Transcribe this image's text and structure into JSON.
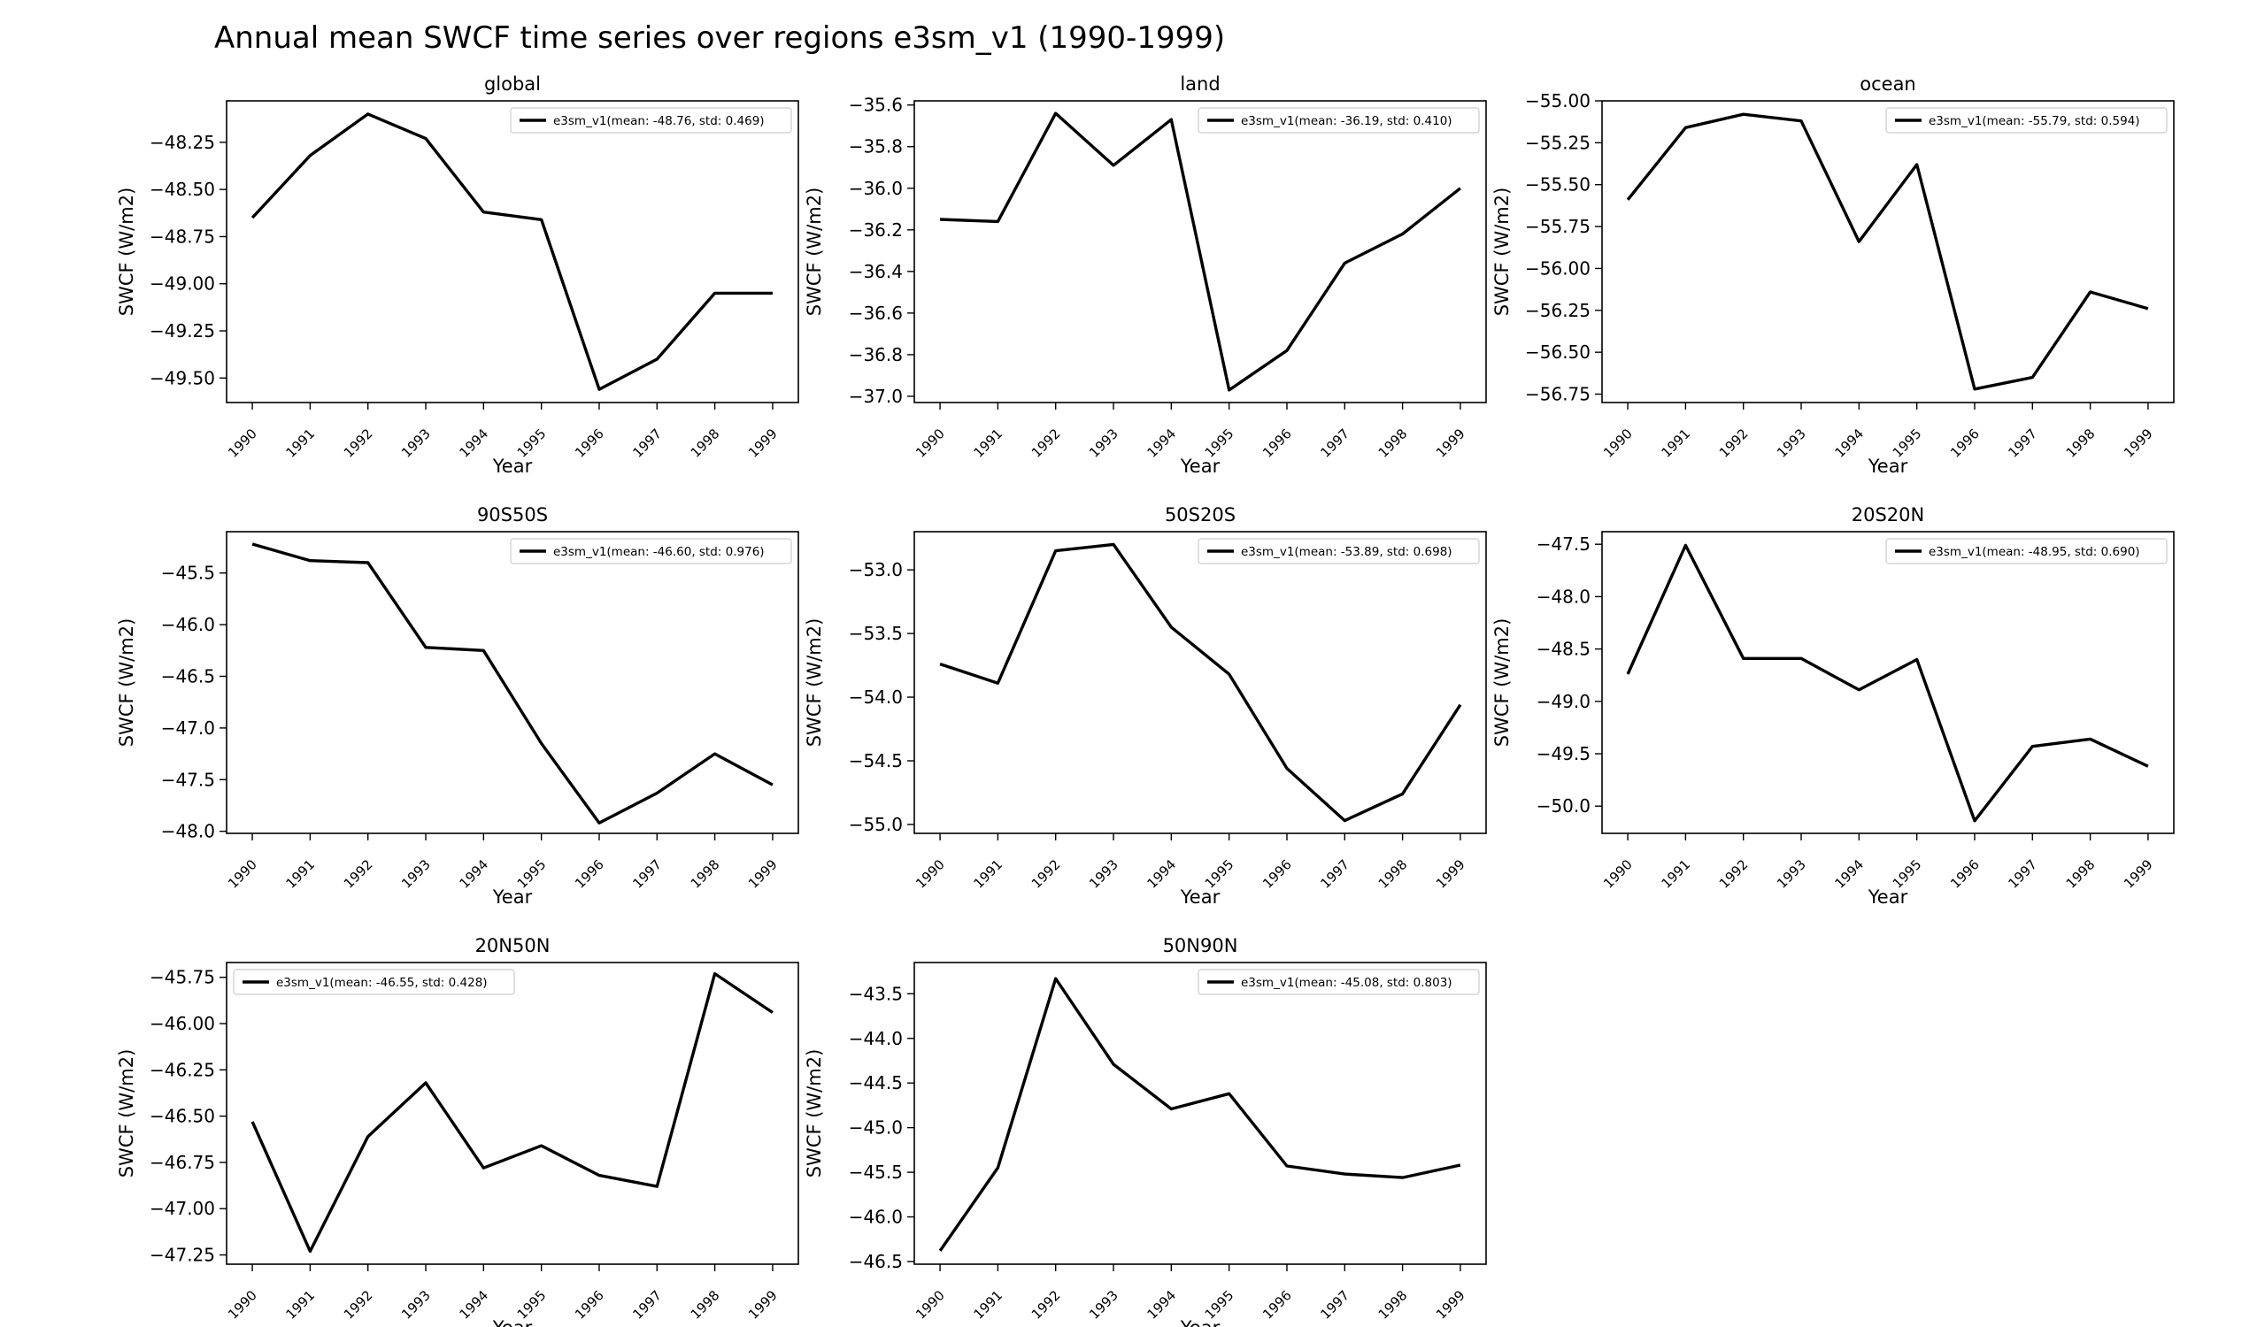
{
  "figure": {
    "title": "Annual mean SWCF time series over regions e3sm_v1 (1990-1999)"
  },
  "chart_data": [
    {
      "type": "line",
      "title": "global",
      "xlabel": "Year",
      "ylabel": "SWCF (W/m2)",
      "x": [
        "1990",
        "1991",
        "1992",
        "1993",
        "1994",
        "1995",
        "1996",
        "1997",
        "1998",
        "1999"
      ],
      "series": [
        {
          "name": "e3sm_v1(mean: -48.76, std: 0.469)",
          "color": "#000000",
          "values": [
            -48.65,
            -48.32,
            -48.1,
            -48.23,
            -48.62,
            -48.66,
            -49.56,
            -49.4,
            -49.05,
            -49.05
          ]
        }
      ],
      "ylim": [
        -49.63,
        -48.03
      ],
      "yticks": [
        -49.5,
        -49.25,
        -49.0,
        -48.75,
        -48.5,
        -48.25
      ],
      "ytick_labels": [
        "−49.50",
        "−49.25",
        "−49.00",
        "−48.75",
        "−48.50",
        "−48.25"
      ],
      "legend": "upper right"
    },
    {
      "type": "line",
      "title": "land",
      "xlabel": "Year",
      "ylabel": "SWCF (W/m2)",
      "x": [
        "1990",
        "1991",
        "1992",
        "1993",
        "1994",
        "1995",
        "1996",
        "1997",
        "1998",
        "1999"
      ],
      "series": [
        {
          "name": "e3sm_v1(mean: -36.19, std: 0.410)",
          "color": "#000000",
          "values": [
            -36.15,
            -36.16,
            -35.64,
            -35.89,
            -35.67,
            -36.97,
            -36.78,
            -36.36,
            -36.22,
            -36.0
          ]
        }
      ],
      "ylim": [
        -37.03,
        -35.58
      ],
      "yticks": [
        -37.0,
        -36.8,
        -36.6,
        -36.4,
        -36.2,
        -36.0,
        -35.8,
        -35.6
      ],
      "ytick_labels": [
        "−37.0",
        "−36.8",
        "−36.6",
        "−36.4",
        "−36.2",
        "−36.0",
        "−35.8",
        "−35.6"
      ],
      "legend": "upper right"
    },
    {
      "type": "line",
      "title": "ocean",
      "xlabel": "Year",
      "ylabel": "SWCF (W/m2)",
      "x": [
        "1990",
        "1991",
        "1992",
        "1993",
        "1994",
        "1995",
        "1996",
        "1997",
        "1998",
        "1999"
      ],
      "series": [
        {
          "name": "e3sm_v1(mean: -55.79, std: 0.594)",
          "color": "#000000",
          "values": [
            -55.59,
            -55.16,
            -55.08,
            -55.12,
            -55.84,
            -55.38,
            -56.72,
            -56.65,
            -56.14,
            -56.24
          ]
        }
      ],
      "ylim": [
        -56.8,
        -55.0
      ],
      "yticks": [
        -56.75,
        -56.5,
        -56.25,
        -56.0,
        -55.75,
        -55.5,
        -55.25,
        -55.0
      ],
      "ytick_labels": [
        "−56.75",
        "−56.50",
        "−56.25",
        "−56.00",
        "−55.75",
        "−55.50",
        "−55.25",
        "−55.00"
      ],
      "legend": "upper right"
    },
    {
      "type": "line",
      "title": "90S50S",
      "xlabel": "Year",
      "ylabel": "SWCF (W/m2)",
      "x": [
        "1990",
        "1991",
        "1992",
        "1993",
        "1994",
        "1995",
        "1996",
        "1997",
        "1998",
        "1999"
      ],
      "series": [
        {
          "name": "e3sm_v1(mean: -46.60, std: 0.976)",
          "color": "#000000",
          "values": [
            -45.22,
            -45.38,
            -45.4,
            -46.22,
            -46.25,
            -47.15,
            -47.92,
            -47.63,
            -47.25,
            -47.55
          ]
        }
      ],
      "ylim": [
        -48.02,
        -45.1
      ],
      "yticks": [
        -48.0,
        -47.5,
        -47.0,
        -46.5,
        -46.0,
        -45.5
      ],
      "ytick_labels": [
        "−48.0",
        "−47.5",
        "−47.0",
        "−46.5",
        "−46.0",
        "−45.5"
      ],
      "legend": "upper right"
    },
    {
      "type": "line",
      "title": "50S20S",
      "xlabel": "Year",
      "ylabel": "SWCF (W/m2)",
      "x": [
        "1990",
        "1991",
        "1992",
        "1993",
        "1994",
        "1995",
        "1996",
        "1997",
        "1998",
        "1999"
      ],
      "series": [
        {
          "name": "e3sm_v1(mean: -53.89, std: 0.698)",
          "color": "#000000",
          "values": [
            -53.74,
            -53.89,
            -52.85,
            -52.8,
            -53.45,
            -53.82,
            -54.56,
            -54.97,
            -54.76,
            -54.06
          ]
        }
      ],
      "ylim": [
        -55.07,
        -52.7
      ],
      "yticks": [
        -55.0,
        -54.5,
        -54.0,
        -53.5,
        -53.0
      ],
      "ytick_labels": [
        "−55.0",
        "−54.5",
        "−54.0",
        "−53.5",
        "−53.0"
      ],
      "legend": "upper right"
    },
    {
      "type": "line",
      "title": "20S20N",
      "xlabel": "Year",
      "ylabel": "SWCF (W/m2)",
      "x": [
        "1990",
        "1991",
        "1992",
        "1993",
        "1994",
        "1995",
        "1996",
        "1997",
        "1998",
        "1999"
      ],
      "series": [
        {
          "name": "e3sm_v1(mean: -48.95, std: 0.690)",
          "color": "#000000",
          "values": [
            -48.74,
            -47.51,
            -48.59,
            -48.59,
            -48.89,
            -48.6,
            -50.14,
            -49.43,
            -49.36,
            -49.62
          ]
        }
      ],
      "ylim": [
        -50.26,
        -47.38
      ],
      "yticks": [
        -50.0,
        -49.5,
        -49.0,
        -48.5,
        -48.0,
        -47.5
      ],
      "ytick_labels": [
        "−50.0",
        "−49.5",
        "−49.0",
        "−48.5",
        "−48.0",
        "−47.5"
      ],
      "legend": "upper right"
    },
    {
      "type": "line",
      "title": "20N50N",
      "xlabel": "Year",
      "ylabel": "SWCF (W/m2)",
      "x": [
        "1990",
        "1991",
        "1992",
        "1993",
        "1994",
        "1995",
        "1996",
        "1997",
        "1998",
        "1999"
      ],
      "series": [
        {
          "name": "e3sm_v1(mean: -46.55, std: 0.428)",
          "color": "#000000",
          "values": [
            -46.53,
            -47.23,
            -46.61,
            -46.32,
            -46.78,
            -46.66,
            -46.82,
            -46.88,
            -45.73,
            -45.94
          ]
        }
      ],
      "ylim": [
        -47.3,
        -45.67
      ],
      "yticks": [
        -47.25,
        -47.0,
        -46.75,
        -46.5,
        -46.25,
        -46.0,
        -45.75
      ],
      "ytick_labels": [
        "−47.25",
        "−47.00",
        "−46.75",
        "−46.50",
        "−46.25",
        "−46.00",
        "−45.75"
      ],
      "legend": "upper left"
    },
    {
      "type": "line",
      "title": "50N90N",
      "xlabel": "Year",
      "ylabel": "SWCF (W/m2)",
      "x": [
        "1990",
        "1991",
        "1992",
        "1993",
        "1994",
        "1995",
        "1996",
        "1997",
        "1998",
        "1999"
      ],
      "series": [
        {
          "name": "e3sm_v1(mean: -45.08, std: 0.803)",
          "color": "#000000",
          "values": [
            -46.38,
            -45.45,
            -43.33,
            -44.29,
            -44.79,
            -44.62,
            -45.43,
            -45.52,
            -45.56,
            -45.42
          ]
        }
      ],
      "ylim": [
        -46.53,
        -43.15
      ],
      "yticks": [
        -46.5,
        -46.0,
        -45.5,
        -45.0,
        -44.5,
        -44.0,
        -43.5
      ],
      "ytick_labels": [
        "−46.5",
        "−46.0",
        "−45.5",
        "−45.0",
        "−44.5",
        "−44.0",
        "−43.5"
      ],
      "legend": "upper right"
    }
  ]
}
